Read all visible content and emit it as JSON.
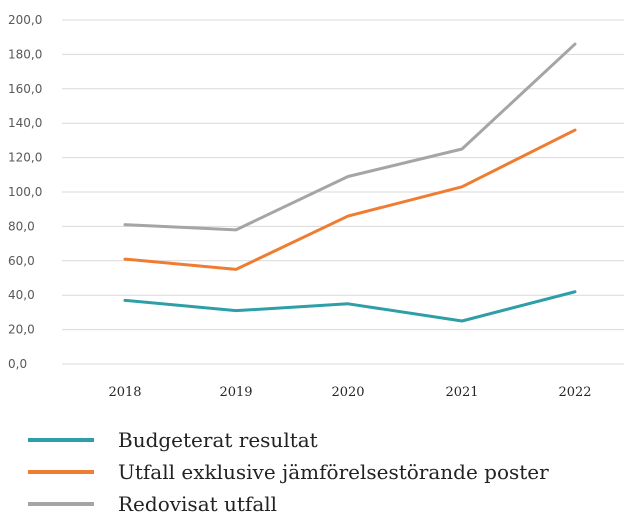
{
  "chart_data": {
    "type": "line",
    "categories": [
      "2018",
      "2019",
      "2020",
      "2021",
      "2022"
    ],
    "yticks": [
      "0,0",
      "20,0",
      "40,0",
      "60,0",
      "80,0",
      "100,0",
      "120,0",
      "140,0",
      "160,0",
      "180,0",
      "200,0"
    ],
    "ylim": [
      0,
      200
    ],
    "grid": true,
    "legend_position": "bottom",
    "series": [
      {
        "name": "Budgeterat resultat",
        "color": "#2e9ea8",
        "values": [
          37,
          31,
          35,
          25,
          42
        ]
      },
      {
        "name": "Utfall exklusive jämförelsestörande poster",
        "color": "#ee7d31",
        "values": [
          61,
          55,
          86,
          103,
          136
        ]
      },
      {
        "name": "Redovisat utfall",
        "color": "#a5a5a5",
        "values": [
          81,
          78,
          109,
          125,
          186
        ]
      }
    ]
  }
}
